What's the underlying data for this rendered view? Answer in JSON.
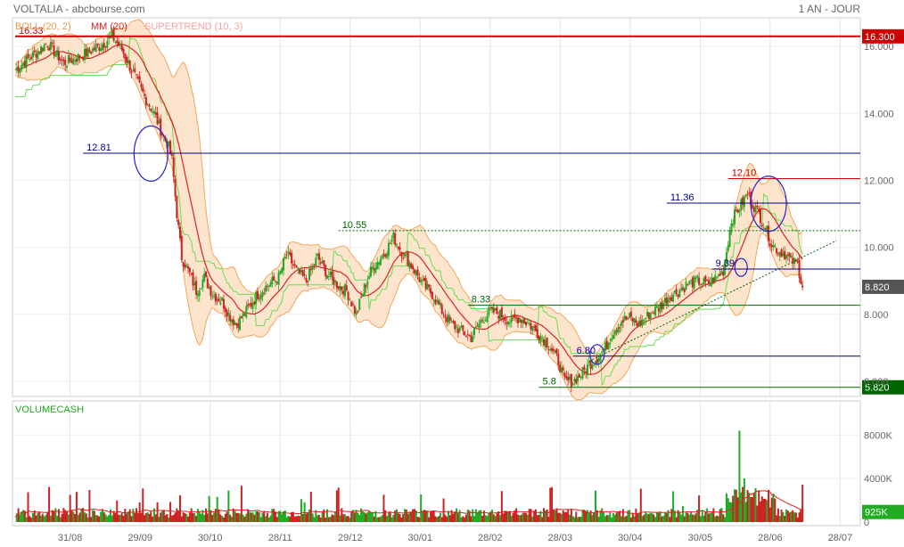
{
  "header": {
    "title": "VOLTALIA - abcbourse.com",
    "period": "1 AN - JOUR"
  },
  "legend": {
    "boll": "BOLL (20, 2)",
    "mm": "MM (20)",
    "supertrend": "SUPERTREND (10, 3)",
    "volume": "VOLUMECASH"
  },
  "colors": {
    "price_up": "#22aa22",
    "price_down": "#cc2222",
    "boll_fill": "#fde0c4",
    "boll_line": "#f2a65a",
    "mm": "#dd2222",
    "supertrend_up": "#66dd55",
    "supertrend_down": "#f4a3a3",
    "level_red": "#cc0000",
    "level_blue": "#000088",
    "level_green": "#006600",
    "volume_bar": "#dd2222"
  },
  "chart_data": {
    "type": "candlestick",
    "price_axis": {
      "min": 5.6,
      "max": 16.8,
      "ticks": [
        "6.000",
        "8.000",
        "10.000",
        "12.000",
        "14.000",
        "16.000"
      ]
    },
    "volume_axis": {
      "min": 0,
      "max": 9500,
      "unit": "K",
      "ticks": [
        "0",
        "4000K",
        "8000K"
      ]
    },
    "x_ticks": [
      "31/08",
      "29/09",
      "30/10",
      "28/11",
      "29/12",
      "30/01",
      "28/02",
      "28/03",
      "30/04",
      "30/05",
      "28/06",
      "28/07"
    ],
    "last_price_label": "8.820",
    "last_volume_label": "925K",
    "price_path": [
      [
        0,
        15.3
      ],
      [
        10,
        15.7
      ],
      [
        20,
        16.1
      ],
      [
        30,
        15.5
      ],
      [
        40,
        15.7
      ],
      [
        52,
        16.0
      ],
      [
        60,
        16.3
      ],
      [
        66,
        15.9
      ],
      [
        70,
        15.5
      ],
      [
        75,
        15.0
      ],
      [
        80,
        14.5
      ],
      [
        86,
        14.0
      ],
      [
        90,
        13.5
      ],
      [
        95,
        13.0
      ],
      [
        97,
        12.6
      ],
      [
        100,
        11.0
      ],
      [
        103,
        9.7
      ],
      [
        108,
        9.2
      ],
      [
        112,
        8.7
      ],
      [
        117,
        9.1
      ],
      [
        122,
        8.6
      ],
      [
        128,
        8.4
      ],
      [
        132,
        8.0
      ],
      [
        137,
        7.7
      ],
      [
        143,
        8.1
      ],
      [
        150,
        8.6
      ],
      [
        157,
        8.9
      ],
      [
        163,
        9.1
      ],
      [
        168,
        9.8
      ],
      [
        174,
        9.3
      ],
      [
        180,
        9.0
      ],
      [
        187,
        9.7
      ],
      [
        193,
        9.2
      ],
      [
        199,
        8.9
      ],
      [
        205,
        8.7
      ],
      [
        211,
        8.0
      ],
      [
        216,
        8.8
      ],
      [
        221,
        9.4
      ],
      [
        228,
        9.8
      ],
      [
        234,
        10.3
      ],
      [
        240,
        9.8
      ],
      [
        246,
        9.4
      ],
      [
        252,
        8.9
      ],
      [
        258,
        8.6
      ],
      [
        264,
        8.1
      ],
      [
        270,
        7.7
      ],
      [
        276,
        7.5
      ],
      [
        282,
        7.3
      ],
      [
        288,
        7.8
      ],
      [
        294,
        8.1
      ],
      [
        300,
        8.0
      ],
      [
        306,
        7.8
      ],
      [
        312,
        7.9
      ],
      [
        318,
        7.7
      ],
      [
        324,
        7.4
      ],
      [
        330,
        7.1
      ],
      [
        336,
        6.6
      ],
      [
        340,
        6.0
      ],
      [
        345,
        6.0
      ],
      [
        350,
        6.2
      ],
      [
        355,
        6.5
      ],
      [
        360,
        6.7
      ],
      [
        365,
        7.0
      ],
      [
        370,
        7.5
      ],
      [
        375,
        7.8
      ],
      [
        380,
        7.9
      ],
      [
        386,
        7.7
      ],
      [
        392,
        8.0
      ],
      [
        398,
        8.2
      ],
      [
        404,
        8.5
      ],
      [
        410,
        8.7
      ],
      [
        416,
        8.9
      ],
      [
        422,
        9.0
      ],
      [
        428,
        8.9
      ],
      [
        434,
        9.1
      ],
      [
        438,
        9.3
      ],
      [
        443,
        10.8
      ],
      [
        448,
        11.2
      ],
      [
        453,
        11.6
      ],
      [
        456,
        11.3
      ],
      [
        460,
        11.0
      ],
      [
        464,
        10.6
      ],
      [
        468,
        10.1
      ],
      [
        472,
        9.9
      ],
      [
        476,
        9.8
      ],
      [
        480,
        9.6
      ],
      [
        484,
        9.5
      ],
      [
        487,
        8.8
      ]
    ],
    "levels": [
      {
        "value": 16.3,
        "label": "16.33",
        "color": "red",
        "style": "solid",
        "x_start": 0,
        "axis_label": "16.300"
      },
      {
        "value": 12.81,
        "label": "12.81",
        "color": "blue",
        "style": "solid",
        "x_start": 42
      },
      {
        "value": 12.05,
        "label": "12.10",
        "color": "red",
        "style": "solid",
        "x_start": 441
      },
      {
        "value": 11.32,
        "label": "11.36",
        "color": "blue",
        "style": "solid",
        "x_start": 403
      },
      {
        "value": 10.5,
        "label": "10.55",
        "color": "green",
        "style": "dashed",
        "x_start": 200
      },
      {
        "value": 9.35,
        "label": "9.39",
        "color": "blue",
        "style": "solid",
        "x_start": 431
      },
      {
        "value": 8.27,
        "label": "8.33",
        "color": "green",
        "style": "solid",
        "x_start": 280
      },
      {
        "value": 6.75,
        "label": "6.80",
        "color": "blue",
        "style": "solid",
        "x_start": 345
      },
      {
        "value": 5.82,
        "label": "5.8",
        "color": "green",
        "style": "solid",
        "x_start": 324,
        "axis_label": "5.820"
      }
    ],
    "trendline": {
      "from": [
        355,
        6.6
      ],
      "to": [
        508,
        10.2
      ]
    },
    "circles": [
      {
        "x": 84,
        "value": 12.8,
        "rx": 19,
        "ry": 31
      },
      {
        "x": 466,
        "value": 11.3,
        "rx": 20,
        "ry": 31
      },
      {
        "x": 449,
        "value": 9.4,
        "rx": 7,
        "ry": 10
      },
      {
        "x": 360,
        "value": 6.8,
        "rx": 8,
        "ry": 11
      }
    ],
    "volume_spike": {
      "x": 448,
      "value": 8400
    }
  }
}
